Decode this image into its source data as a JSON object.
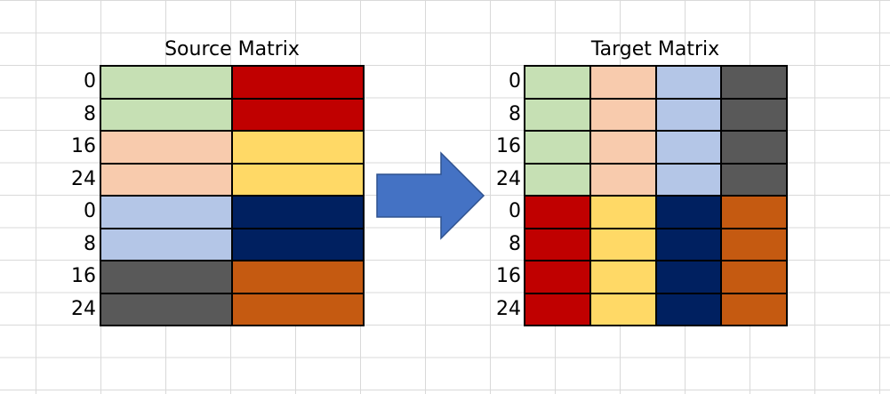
{
  "source": {
    "title": "Source Matrix",
    "row_labels": [
      "0",
      "8",
      "16",
      "24",
      "0",
      "8",
      "16",
      "24"
    ],
    "cells": [
      [
        "#c6e0b4",
        "#c00000"
      ],
      [
        "#c6e0b4",
        "#c00000"
      ],
      [
        "#f8cbad",
        "#ffd966"
      ],
      [
        "#f8cbad",
        "#ffd966"
      ],
      [
        "#b4c6e7",
        "#002060"
      ],
      [
        "#b4c6e7",
        "#002060"
      ],
      [
        "#595959",
        "#c55a11"
      ],
      [
        "#595959",
        "#c55a11"
      ]
    ]
  },
  "target": {
    "title": "Target Matrix",
    "row_labels": [
      "0",
      "8",
      "16",
      "24",
      "0",
      "8",
      "16",
      "24"
    ],
    "cells": [
      [
        "#c6e0b4",
        "#f8cbad",
        "#b4c6e7",
        "#595959"
      ],
      [
        "#c6e0b4",
        "#f8cbad",
        "#b4c6e7",
        "#595959"
      ],
      [
        "#c6e0b4",
        "#f8cbad",
        "#b4c6e7",
        "#595959"
      ],
      [
        "#c6e0b4",
        "#f8cbad",
        "#b4c6e7",
        "#595959"
      ],
      [
        "#c00000",
        "#ffd966",
        "#002060",
        "#c55a11"
      ],
      [
        "#c00000",
        "#ffd966",
        "#002060",
        "#c55a11"
      ],
      [
        "#c00000",
        "#ffd966",
        "#002060",
        "#c55a11"
      ],
      [
        "#c00000",
        "#ffd966",
        "#002060",
        "#c55a11"
      ]
    ]
  },
  "arrow": {
    "fill": "#4472c4",
    "stroke": "#2f528f",
    "direction": "right"
  }
}
